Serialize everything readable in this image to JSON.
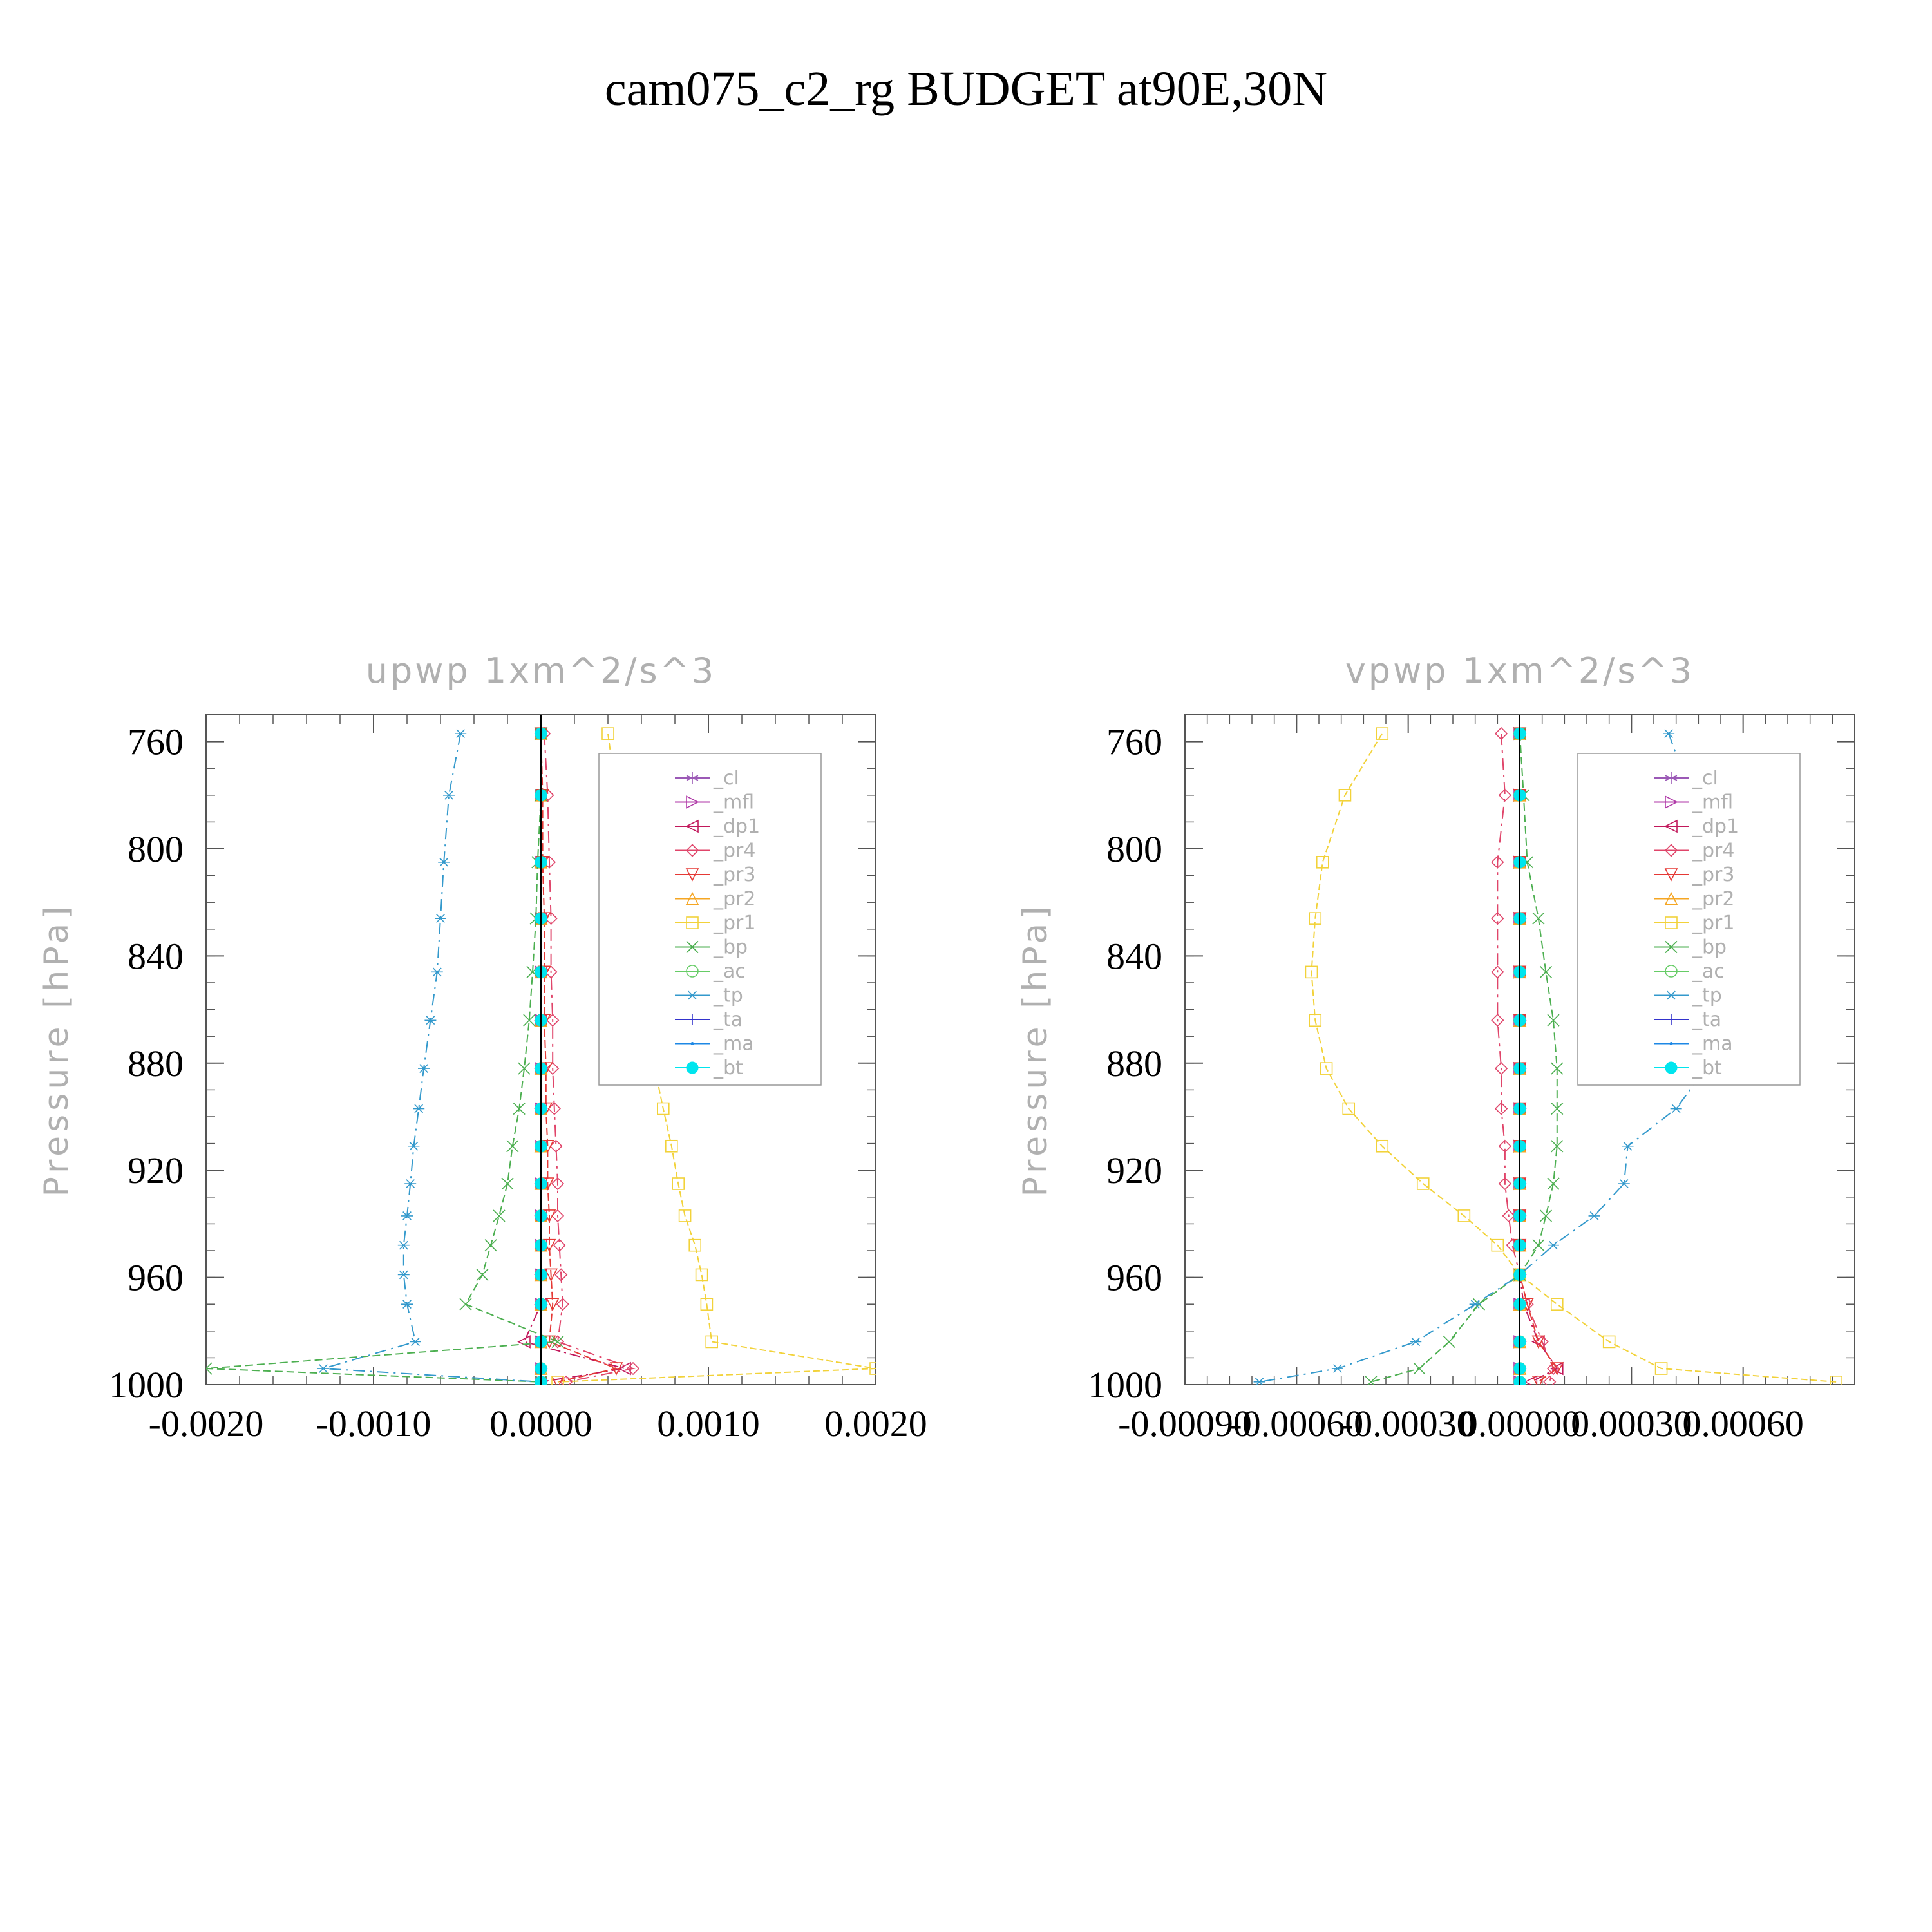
{
  "title": "cam075_c2_rg  BUDGET at90E,30N",
  "colors": {
    "_cl": "#9b59b6",
    "_mfl": "#b03aa8",
    "_dp1": "#c2185b",
    "_pr4": "#e0456a",
    "_pr3": "#e53935",
    "_pr2": "#f5a623",
    "_pr1": "#f2d23a",
    "_bp": "#4caf50",
    "_ac": "#66cc66",
    "_tp": "#3399cc",
    "_ta": "#3333cc",
    "_ma": "#1e88e5",
    "_bt": "#00e5ee",
    "axis": "#555555",
    "label_gray": "#b0b0b0"
  },
  "chart_data": [
    {
      "type": "line",
      "title": "upwp   1xm^2/s^3",
      "ylabel": "Pressure [hPa]",
      "xlabel": "",
      "ylim": [
        1000,
        750
      ],
      "xlim": [
        -0.002,
        0.002
      ],
      "xticks": [
        "-0.0020",
        "-0.0010",
        "0.0000",
        "0.0010",
        "0.0020"
      ],
      "yticks": [
        "760",
        "800",
        "840",
        "880",
        "920",
        "960",
        "1000"
      ],
      "legend_position": "top-right",
      "pressure_levels": [
        757,
        780,
        805,
        826,
        846,
        864,
        882,
        897,
        911,
        925,
        937,
        948,
        959,
        970,
        984,
        994,
        999
      ],
      "series": [
        {
          "name": "_cl",
          "marker": "star",
          "values": [
            0,
            0,
            0,
            0,
            0,
            0,
            0,
            0,
            0,
            0,
            0,
            0,
            0,
            0,
            0,
            0,
            0
          ]
        },
        {
          "name": "_mfl",
          "marker": "tri-right",
          "values": [
            0,
            0,
            0,
            0,
            0,
            0,
            0,
            0,
            0,
            0,
            0,
            0,
            0,
            0,
            0,
            0,
            0
          ]
        },
        {
          "name": "_dp1",
          "marker": "tri-left",
          "values": [
            0,
            0,
            0,
            0,
            0,
            0,
            0,
            0,
            0,
            0,
            0,
            0,
            0,
            0,
            -0.0001,
            0.0005,
            0
          ]
        },
        {
          "name": "_pr4",
          "marker": "diamond",
          "values": [
            2e-05,
            4e-05,
            5e-05,
            6e-05,
            6e-05,
            7e-05,
            7e-05,
            8e-05,
            9e-05,
            0.0001,
            0.0001,
            0.00011,
            0.00012,
            0.00013,
            0.0001,
            0.00055,
            0.00015
          ]
        },
        {
          "name": "_pr3",
          "marker": "tri-down",
          "values": [
            0,
            1e-05,
            1e-05,
            2e-05,
            2e-05,
            2e-05,
            3e-05,
            3e-05,
            4e-05,
            4e-05,
            5e-05,
            5e-05,
            6e-05,
            7e-05,
            5e-05,
            0.00045,
            0.0001
          ]
        },
        {
          "name": "_pr2",
          "marker": "tri-up",
          "values": [
            0,
            0,
            0,
            0,
            0,
            0,
            0,
            0,
            0,
            0,
            0,
            0,
            0,
            0,
            0,
            0,
            0
          ]
        },
        {
          "name": "_pr1",
          "marker": "square",
          "values": [
            0.0004,
            0.00045,
            0.00048,
            0.00052,
            0.00056,
            0.00062,
            0.00068,
            0.00073,
            0.00078,
            0.00082,
            0.00086,
            0.00092,
            0.00096,
            0.00099,
            0.00102,
            0.002,
            0.0001
          ]
        },
        {
          "name": "_bp",
          "marker": "x",
          "values": [
            0,
            0,
            -2e-05,
            -3e-05,
            -5e-05,
            -7e-05,
            -0.0001,
            -0.00013,
            -0.00017,
            -0.0002,
            -0.00025,
            -0.0003,
            -0.00035,
            -0.00045,
            0.0001,
            -0.002,
            0
          ]
        },
        {
          "name": "_ac",
          "marker": "circle",
          "values": [
            0,
            0,
            0,
            0,
            0,
            0,
            0,
            0,
            0,
            0,
            0,
            0,
            0,
            0,
            0,
            0,
            0
          ]
        },
        {
          "name": "_tp",
          "marker": "asterisk",
          "values": [
            -0.00048,
            -0.00055,
            -0.00058,
            -0.0006,
            -0.00062,
            -0.00066,
            -0.0007,
            -0.00073,
            -0.00076,
            -0.00078,
            -0.0008,
            -0.00082,
            -0.00082,
            -0.0008,
            -0.00075,
            -0.0013,
            0
          ]
        },
        {
          "name": "_ta",
          "marker": "plus",
          "values": [
            0,
            0,
            0,
            0,
            0,
            0,
            0,
            0,
            0,
            0,
            0,
            0,
            0,
            0,
            0,
            0,
            0
          ]
        },
        {
          "name": "_ma",
          "marker": "dot",
          "values": [
            0,
            0,
            0,
            0,
            0,
            0,
            0,
            0,
            0,
            0,
            0,
            0,
            0,
            0,
            0,
            0,
            0
          ]
        },
        {
          "name": "_bt",
          "marker": "filled-circle",
          "values": [
            0,
            0,
            0,
            0,
            0,
            0,
            0,
            0,
            0,
            0,
            0,
            0,
            0,
            0,
            0,
            0,
            0
          ]
        }
      ]
    },
    {
      "type": "line",
      "title": "vpwp   1xm^2/s^3",
      "ylabel": "Pressure [hPa]",
      "xlabel": "",
      "ylim": [
        1000,
        750
      ],
      "xlim": [
        -0.0009,
        0.0009
      ],
      "xticks": [
        "-0.00090",
        "-0.00060",
        "-0.00030",
        "0.00000",
        "0.00030",
        "0.00060"
      ],
      "yticks": [
        "760",
        "800",
        "840",
        "880",
        "920",
        "960",
        "1000"
      ],
      "legend_position": "top-right",
      "pressure_levels": [
        757,
        780,
        805,
        826,
        846,
        864,
        882,
        897,
        911,
        925,
        937,
        948,
        959,
        970,
        984,
        994,
        999
      ],
      "series": [
        {
          "name": "_cl",
          "marker": "star",
          "values": [
            0,
            0,
            0,
            0,
            0,
            0,
            0,
            0,
            0,
            0,
            0,
            0,
            0,
            0,
            0,
            0,
            0
          ]
        },
        {
          "name": "_mfl",
          "marker": "tri-right",
          "values": [
            0,
            0,
            0,
            0,
            0,
            0,
            0,
            0,
            0,
            0,
            0,
            0,
            0,
            0,
            0,
            0,
            0
          ]
        },
        {
          "name": "_dp1",
          "marker": "tri-left",
          "values": [
            0,
            0,
            0,
            0,
            0,
            0,
            0,
            0,
            0,
            0,
            0,
            0,
            0,
            1e-05,
            5e-05,
            0.0001,
            3e-05
          ]
        },
        {
          "name": "_pr4",
          "marker": "diamond",
          "values": [
            -5e-05,
            -4e-05,
            -6e-05,
            -6e-05,
            -6e-05,
            -6e-05,
            -5e-05,
            -5e-05,
            -4e-05,
            -4e-05,
            -3e-05,
            -2e-05,
            0,
            2e-05,
            6e-05,
            9e-05,
            8e-05
          ]
        },
        {
          "name": "_pr3",
          "marker": "tri-down",
          "values": [
            0,
            0,
            0,
            0,
            0,
            0,
            0,
            0,
            0,
            0,
            0,
            0,
            0,
            2e-05,
            5e-05,
            0.0001,
            5e-05
          ]
        },
        {
          "name": "_pr2",
          "marker": "tri-up",
          "values": [
            0,
            0,
            0,
            0,
            0,
            0,
            0,
            0,
            0,
            0,
            0,
            0,
            0,
            0,
            0,
            0,
            0
          ]
        },
        {
          "name": "_pr1",
          "marker": "square",
          "values": [
            -0.00037,
            -0.00047,
            -0.00053,
            -0.00055,
            -0.00056,
            -0.00055,
            -0.00052,
            -0.00046,
            -0.00037,
            -0.00026,
            -0.00015,
            -6e-05,
            0,
            0.0001,
            0.00024,
            0.00038,
            0.00085
          ]
        },
        {
          "name": "_bp",
          "marker": "x",
          "values": [
            0,
            1e-05,
            2e-05,
            5e-05,
            7e-05,
            9e-05,
            0.0001,
            0.0001,
            0.0001,
            9e-05,
            7e-05,
            5e-05,
            0,
            -0.00011,
            -0.00019,
            -0.00027,
            -0.0004
          ]
        },
        {
          "name": "_ac",
          "marker": "circle",
          "values": [
            0,
            0,
            0,
            0,
            0,
            0,
            0,
            0,
            0,
            0,
            0,
            0,
            0,
            0,
            0,
            0,
            0
          ]
        },
        {
          "name": "_tp",
          "marker": "asterisk",
          "values": [
            0.0004,
            0.00046,
            0.0005,
            0.00055,
            0.00057,
            0.00055,
            0.0005,
            0.00042,
            0.00029,
            0.00028,
            0.0002,
            9e-05,
            0,
            -0.00012,
            -0.00028,
            -0.00049,
            -0.0007
          ]
        },
        {
          "name": "_ta",
          "marker": "plus",
          "values": [
            0,
            0,
            0,
            0,
            0,
            0,
            0,
            0,
            0,
            0,
            0,
            0,
            0,
            0,
            0,
            0,
            0
          ]
        },
        {
          "name": "_ma",
          "marker": "dot",
          "values": [
            0,
            0,
            0,
            0,
            0,
            0,
            0,
            0,
            0,
            0,
            0,
            0,
            0,
            0,
            0,
            0,
            0
          ]
        },
        {
          "name": "_bt",
          "marker": "filled-circle",
          "values": [
            0,
            0,
            0,
            0,
            0,
            0,
            0,
            0,
            0,
            0,
            0,
            0,
            0,
            0,
            0,
            0,
            0
          ]
        }
      ]
    }
  ]
}
